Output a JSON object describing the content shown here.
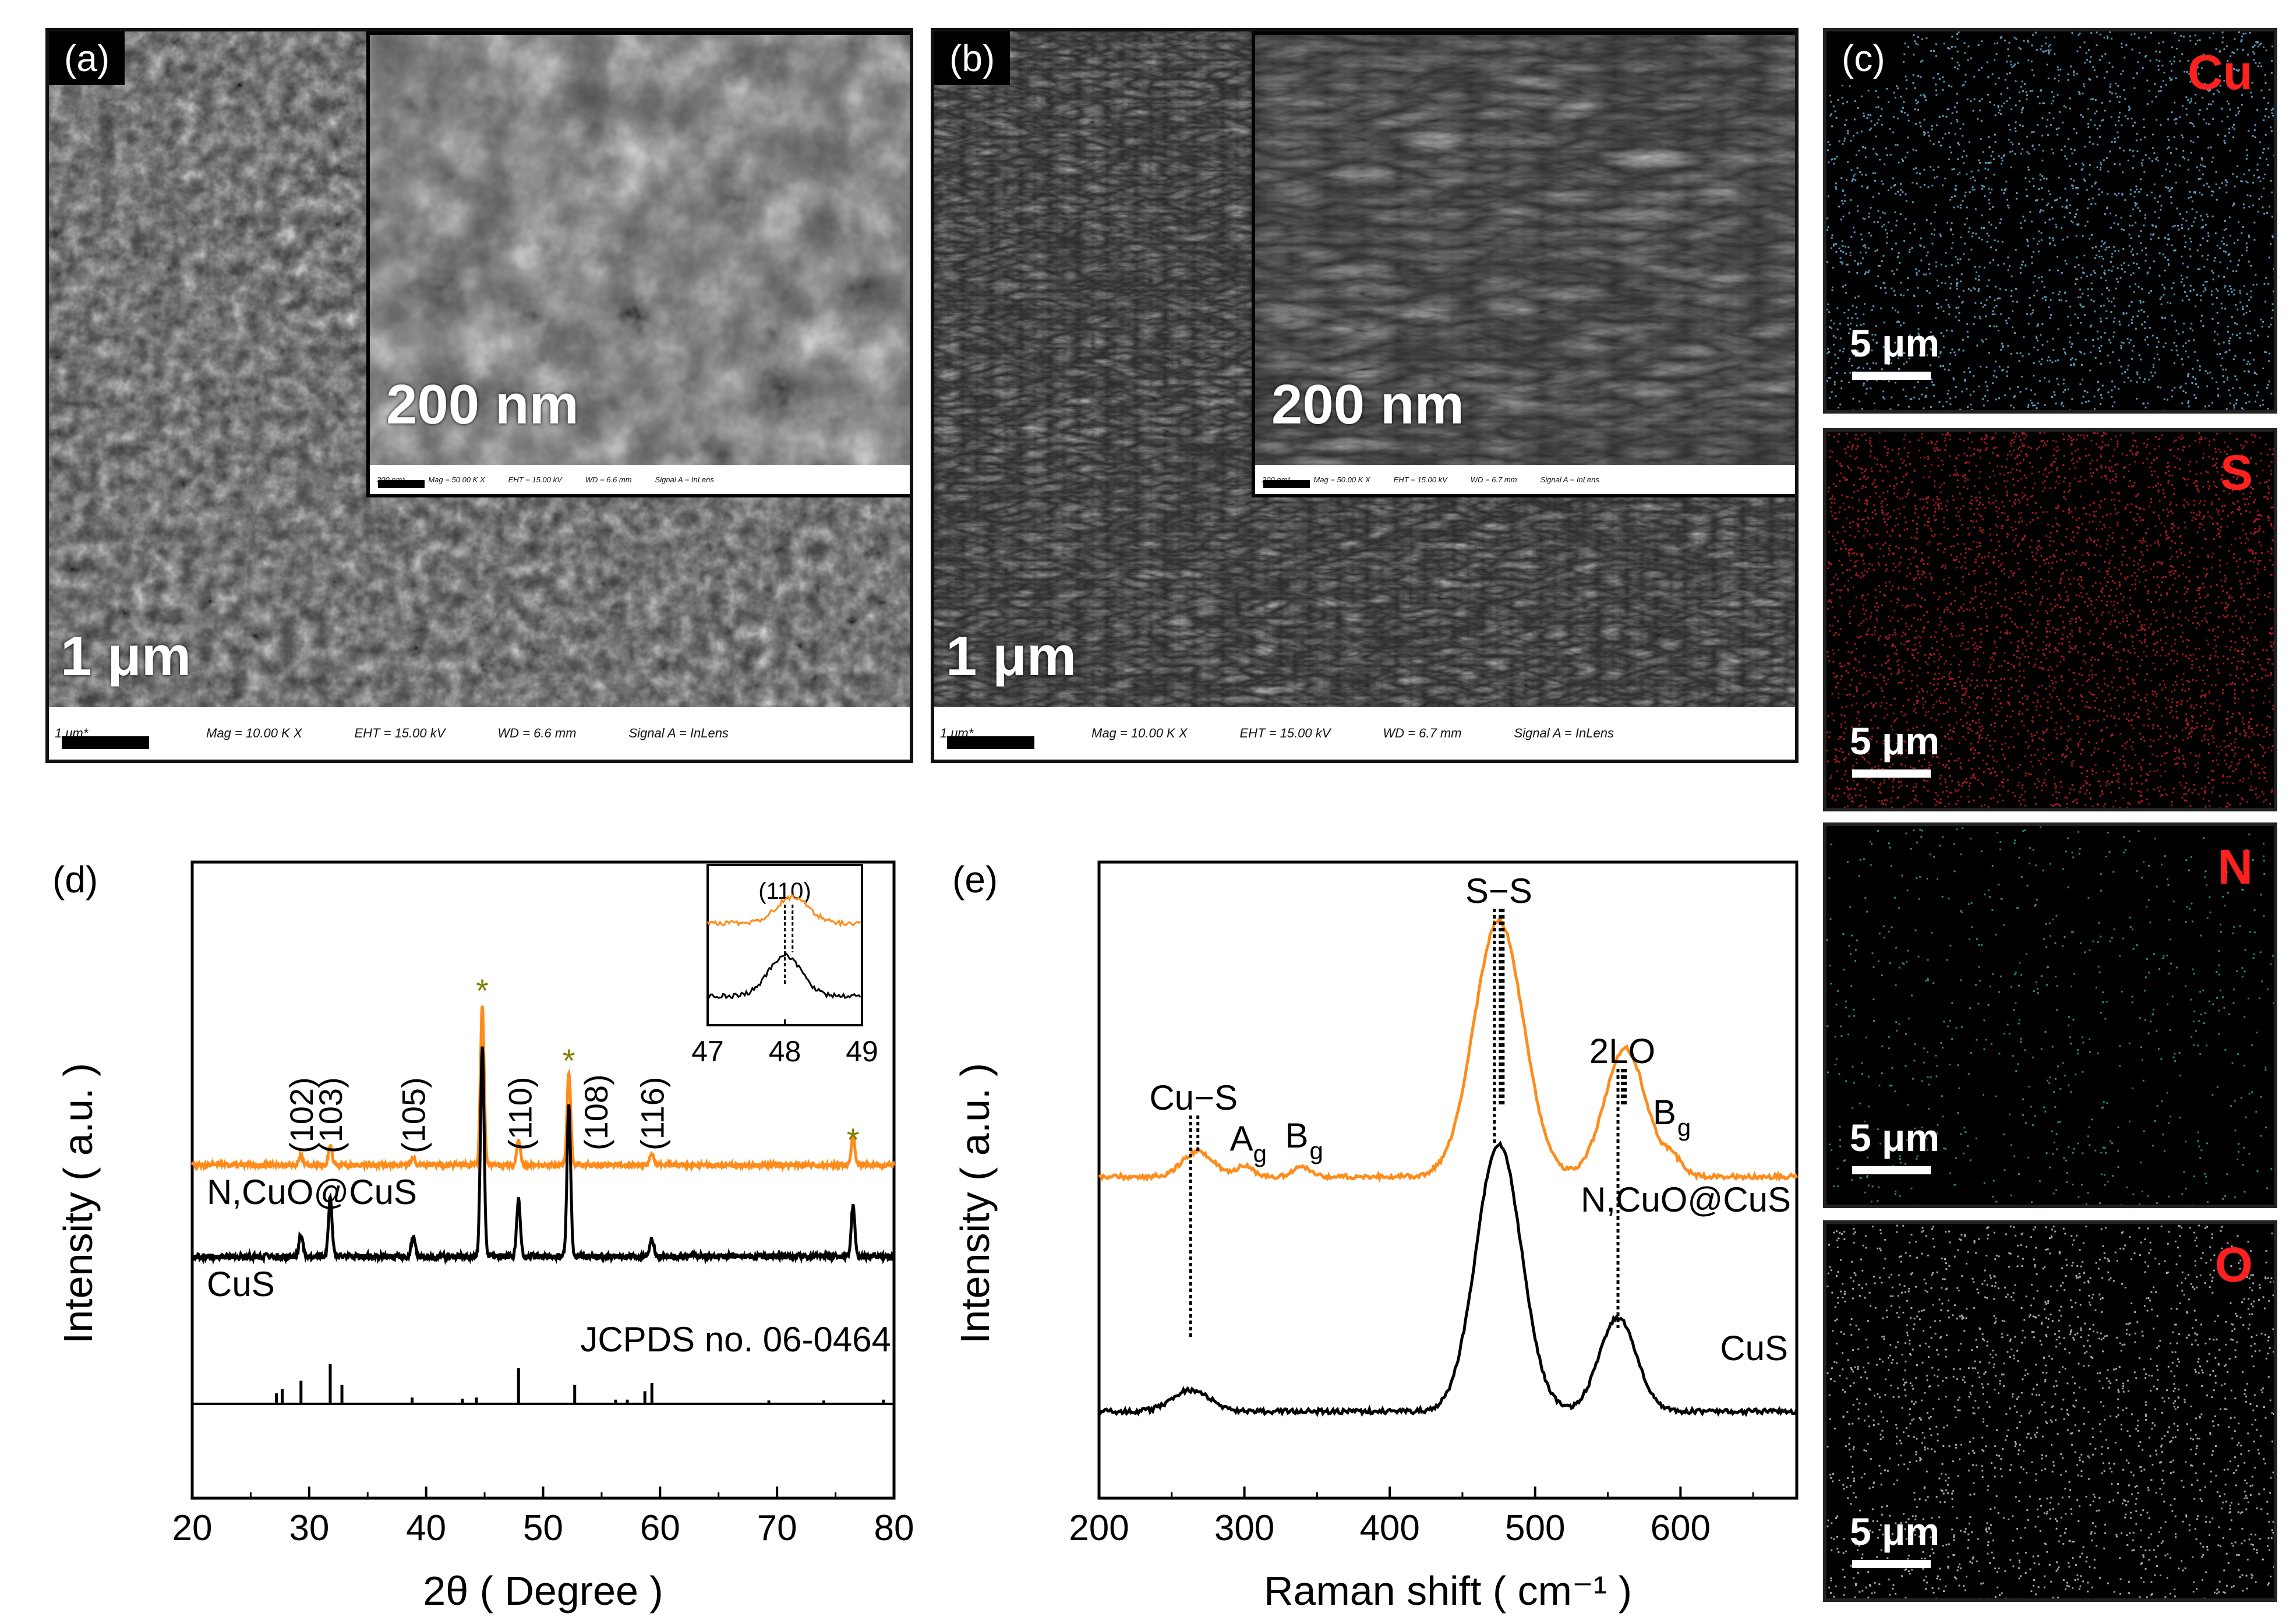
{
  "figure": {
    "panel_a": {
      "label": "(a)",
      "scale_main": "1 μm",
      "scale_inset": "200 nm",
      "info_main": {
        "scale": "1 μm*",
        "mag": "Mag =  10.00 K X",
        "eht": "EHT = 15.00 kV",
        "wd": "WD =  6.6 mm",
        "signal": "Signal A = InLens"
      },
      "info_inset": {
        "scale": "200 nm*",
        "mag": "Mag =  50.00 K X",
        "eht": "EHT = 15.00 kV",
        "wd": "WD = 6.6 mm",
        "signal": "Signal A = InLens"
      }
    },
    "panel_b": {
      "label": "(b)",
      "scale_main": "1 μm",
      "scale_inset": "200 nm",
      "info_main": {
        "scale": "1 μm*",
        "mag": "Mag =  10.00 K X",
        "eht": "EHT = 15.00 kV",
        "wd": "WD =  6.7 mm",
        "signal": "Signal A = InLens"
      },
      "info_inset": {
        "scale": "200 nm*",
        "mag": "Mag =  50.00 K X",
        "eht": "EHT = 15.00 kV",
        "wd": "WD = 6.7 mm",
        "signal": "Signal A = InLens"
      }
    },
    "panel_c": {
      "label": "(c)",
      "maps": [
        {
          "element": "Cu",
          "scale": "5 μm",
          "dot_color": "#6ab8e0"
        },
        {
          "element": "S",
          "scale": "5 μm",
          "dot_color": "#e02525"
        },
        {
          "element": "N",
          "scale": "5 μm",
          "dot_color": "#2aa890"
        },
        {
          "element": "O",
          "scale": "5 μm",
          "dot_color": "#c8c8c8"
        }
      ]
    }
  },
  "chart_data": [
    {
      "type": "line",
      "panel": "(d)",
      "xlabel": "2θ ( Degree )",
      "ylabel": "Intensity ( a.u. )",
      "xlim": [
        20,
        80
      ],
      "xticks": [
        20,
        30,
        40,
        50,
        60,
        70,
        80
      ],
      "series": [
        {
          "name": "N,CuO@CuS",
          "color": "#ff8c1a",
          "peaks": [
            [
              29.3,
              0.06
            ],
            [
              31.8,
              0.12
            ],
            [
              38.9,
              0.05
            ],
            [
              44.8,
              0.95
            ],
            [
              47.9,
              0.15
            ],
            [
              52.2,
              0.55
            ],
            [
              59.3,
              0.07
            ],
            [
              76.5,
              0.18
            ]
          ]
        },
        {
          "name": "CuS",
          "color": "#000000",
          "peaks": [
            [
              29.3,
              0.1
            ],
            [
              31.8,
              0.25
            ],
            [
              38.9,
              0.09
            ],
            [
              44.8,
              0.9
            ],
            [
              47.9,
              0.25
            ],
            [
              52.2,
              0.65
            ],
            [
              59.3,
              0.08
            ],
            [
              76.5,
              0.22
            ]
          ]
        }
      ],
      "reference": {
        "name": "JCPDS no. 06-0464",
        "lines": [
          [
            27.2,
            0.25
          ],
          [
            27.7,
            0.35
          ],
          [
            29.3,
            0.55
          ],
          [
            31.8,
            0.95
          ],
          [
            32.8,
            0.45
          ],
          [
            38.8,
            0.15
          ],
          [
            43.1,
            0.12
          ],
          [
            44.3,
            0.15
          ],
          [
            47.9,
            0.85
          ],
          [
            52.7,
            0.45
          ],
          [
            56.2,
            0.1
          ],
          [
            57.2,
            0.1
          ],
          [
            58.7,
            0.3
          ],
          [
            59.3,
            0.5
          ],
          [
            69.3,
            0.08
          ],
          [
            74.0,
            0.08
          ],
          [
            79.1,
            0.1
          ]
        ]
      },
      "annotations": [
        "(102)",
        "(103)",
        "(105)",
        "(110)",
        "(108)",
        "(116)"
      ],
      "star_marks": [
        44.8,
        52.2,
        76.5
      ],
      "star_symbol": "*",
      "inset": {
        "xlim": [
          47,
          49
        ],
        "xticks": [
          47,
          48,
          49
        ],
        "label": "(110)",
        "peak_orange": 48.1,
        "peak_black": 48.0
      }
    },
    {
      "type": "line",
      "panel": "(e)",
      "xlabel": "Raman shift ( cm⁻¹ )",
      "ylabel": "Intensity ( a.u. )",
      "xlim": [
        200,
        680
      ],
      "xticks": [
        200,
        300,
        400,
        500,
        600
      ],
      "series": [
        {
          "name": "N,CuO@CuS",
          "color": "#ff8c1a",
          "peaks": [
            [
              268,
              15,
              0.1
            ],
            [
              300,
              8,
              0.04
            ],
            [
              340,
              8,
              0.04
            ],
            [
              475,
              24,
              1.0
            ],
            [
              562,
              20,
              0.5
            ],
            [
              595,
              10,
              0.06
            ]
          ]
        },
        {
          "name": "CuS",
          "color": "#000000",
          "peaks": [
            [
              263,
              18,
              0.08
            ],
            [
              475,
              22,
              1.0
            ],
            [
              557,
              18,
              0.35
            ]
          ]
        }
      ],
      "labels": {
        "cus_band": "Cu−S",
        "ag": "A",
        "ag_sub": "g",
        "bg1": "B",
        "bg1_sub": "g",
        "ss": "S−S",
        "two_lo": "2LO",
        "bg2": "B",
        "bg2_sub": "g"
      },
      "guide_lines": [
        263,
        268,
        472,
        476,
        478,
        557,
        560,
        562
      ]
    }
  ]
}
